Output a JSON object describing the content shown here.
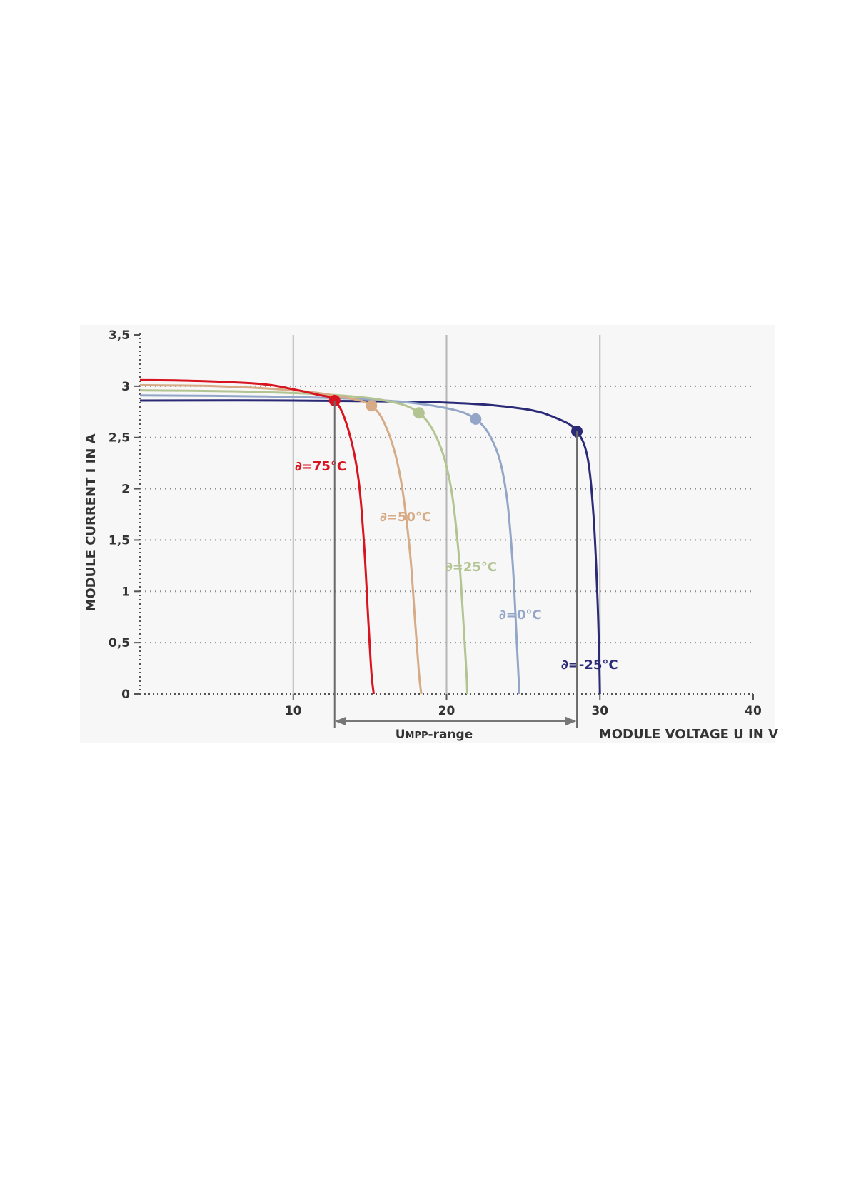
{
  "chart_data": {
    "type": "line",
    "xlabel": "MODULE VOLTAGE U IN V",
    "ylabel": "MODULE CURRENT I IN A",
    "xlim": [
      0,
      40
    ],
    "ylim": [
      0,
      3.5
    ],
    "x_ticks": [
      "10",
      "20",
      "30",
      "40"
    ],
    "y_ticks": [
      "0",
      "0,5",
      "1",
      "1,5",
      "2",
      "2,5",
      "3",
      "3,5"
    ],
    "grid": "horizontal dotted, vertical solid at 10, 20, 30",
    "range_annotation": {
      "label_main": "U",
      "label_sub": "MPP",
      "label_suffix": "-range",
      "from": 12.7,
      "to": 28.5
    },
    "series": [
      {
        "name": "∂=75°C",
        "color": "#d7141f",
        "mpp": [
          12.7,
          2.86
        ],
        "x": [
          0,
          4,
          8,
          10,
          11.5,
          12.7,
          13.5,
          14.2,
          14.6,
          14.9,
          15.1,
          15.25
        ],
        "y": [
          3.06,
          3.05,
          3.02,
          2.97,
          2.92,
          2.86,
          2.62,
          2.15,
          1.5,
          0.7,
          0.2,
          0
        ]
      },
      {
        "name": "∂=50°C",
        "color": "#d6ab85",
        "mpp": [
          15.1,
          2.81
        ],
        "x": [
          0,
          5,
          10,
          13,
          15.1,
          16.2,
          17.0,
          17.6,
          17.95,
          18.2,
          18.35
        ],
        "y": [
          3.01,
          3.0,
          2.96,
          2.9,
          2.81,
          2.55,
          2.1,
          1.4,
          0.7,
          0.2,
          0
        ]
      },
      {
        "name": "∂=25°C",
        "color": "#b3c493",
        "mpp": [
          18.2,
          2.74
        ],
        "x": [
          0,
          6,
          12,
          16,
          18.2,
          19.5,
          20.3,
          20.8,
          21.1,
          21.3,
          21.35
        ],
        "y": [
          2.96,
          2.95,
          2.92,
          2.86,
          2.74,
          2.45,
          2.0,
          1.35,
          0.7,
          0.2,
          0
        ]
      },
      {
        "name": "∂=0°C",
        "color": "#93a6c8",
        "mpp": [
          21.9,
          2.68
        ],
        "x": [
          0,
          8,
          15,
          19.5,
          21.9,
          23.2,
          23.9,
          24.3,
          24.55,
          24.7,
          24.75
        ],
        "y": [
          2.91,
          2.9,
          2.87,
          2.8,
          2.68,
          2.4,
          1.95,
          1.3,
          0.6,
          0.15,
          0
        ]
      },
      {
        "name": "∂=-25°C",
        "color": "#2b2a77",
        "mpp": [
          28.5,
          2.56
        ],
        "x": [
          0,
          10,
          20,
          25,
          27.3,
          28.5,
          29.2,
          29.6,
          29.85,
          29.97,
          30.0
        ],
        "y": [
          2.86,
          2.86,
          2.84,
          2.78,
          2.68,
          2.56,
          2.3,
          1.7,
          0.9,
          0.25,
          0
        ]
      }
    ]
  }
}
